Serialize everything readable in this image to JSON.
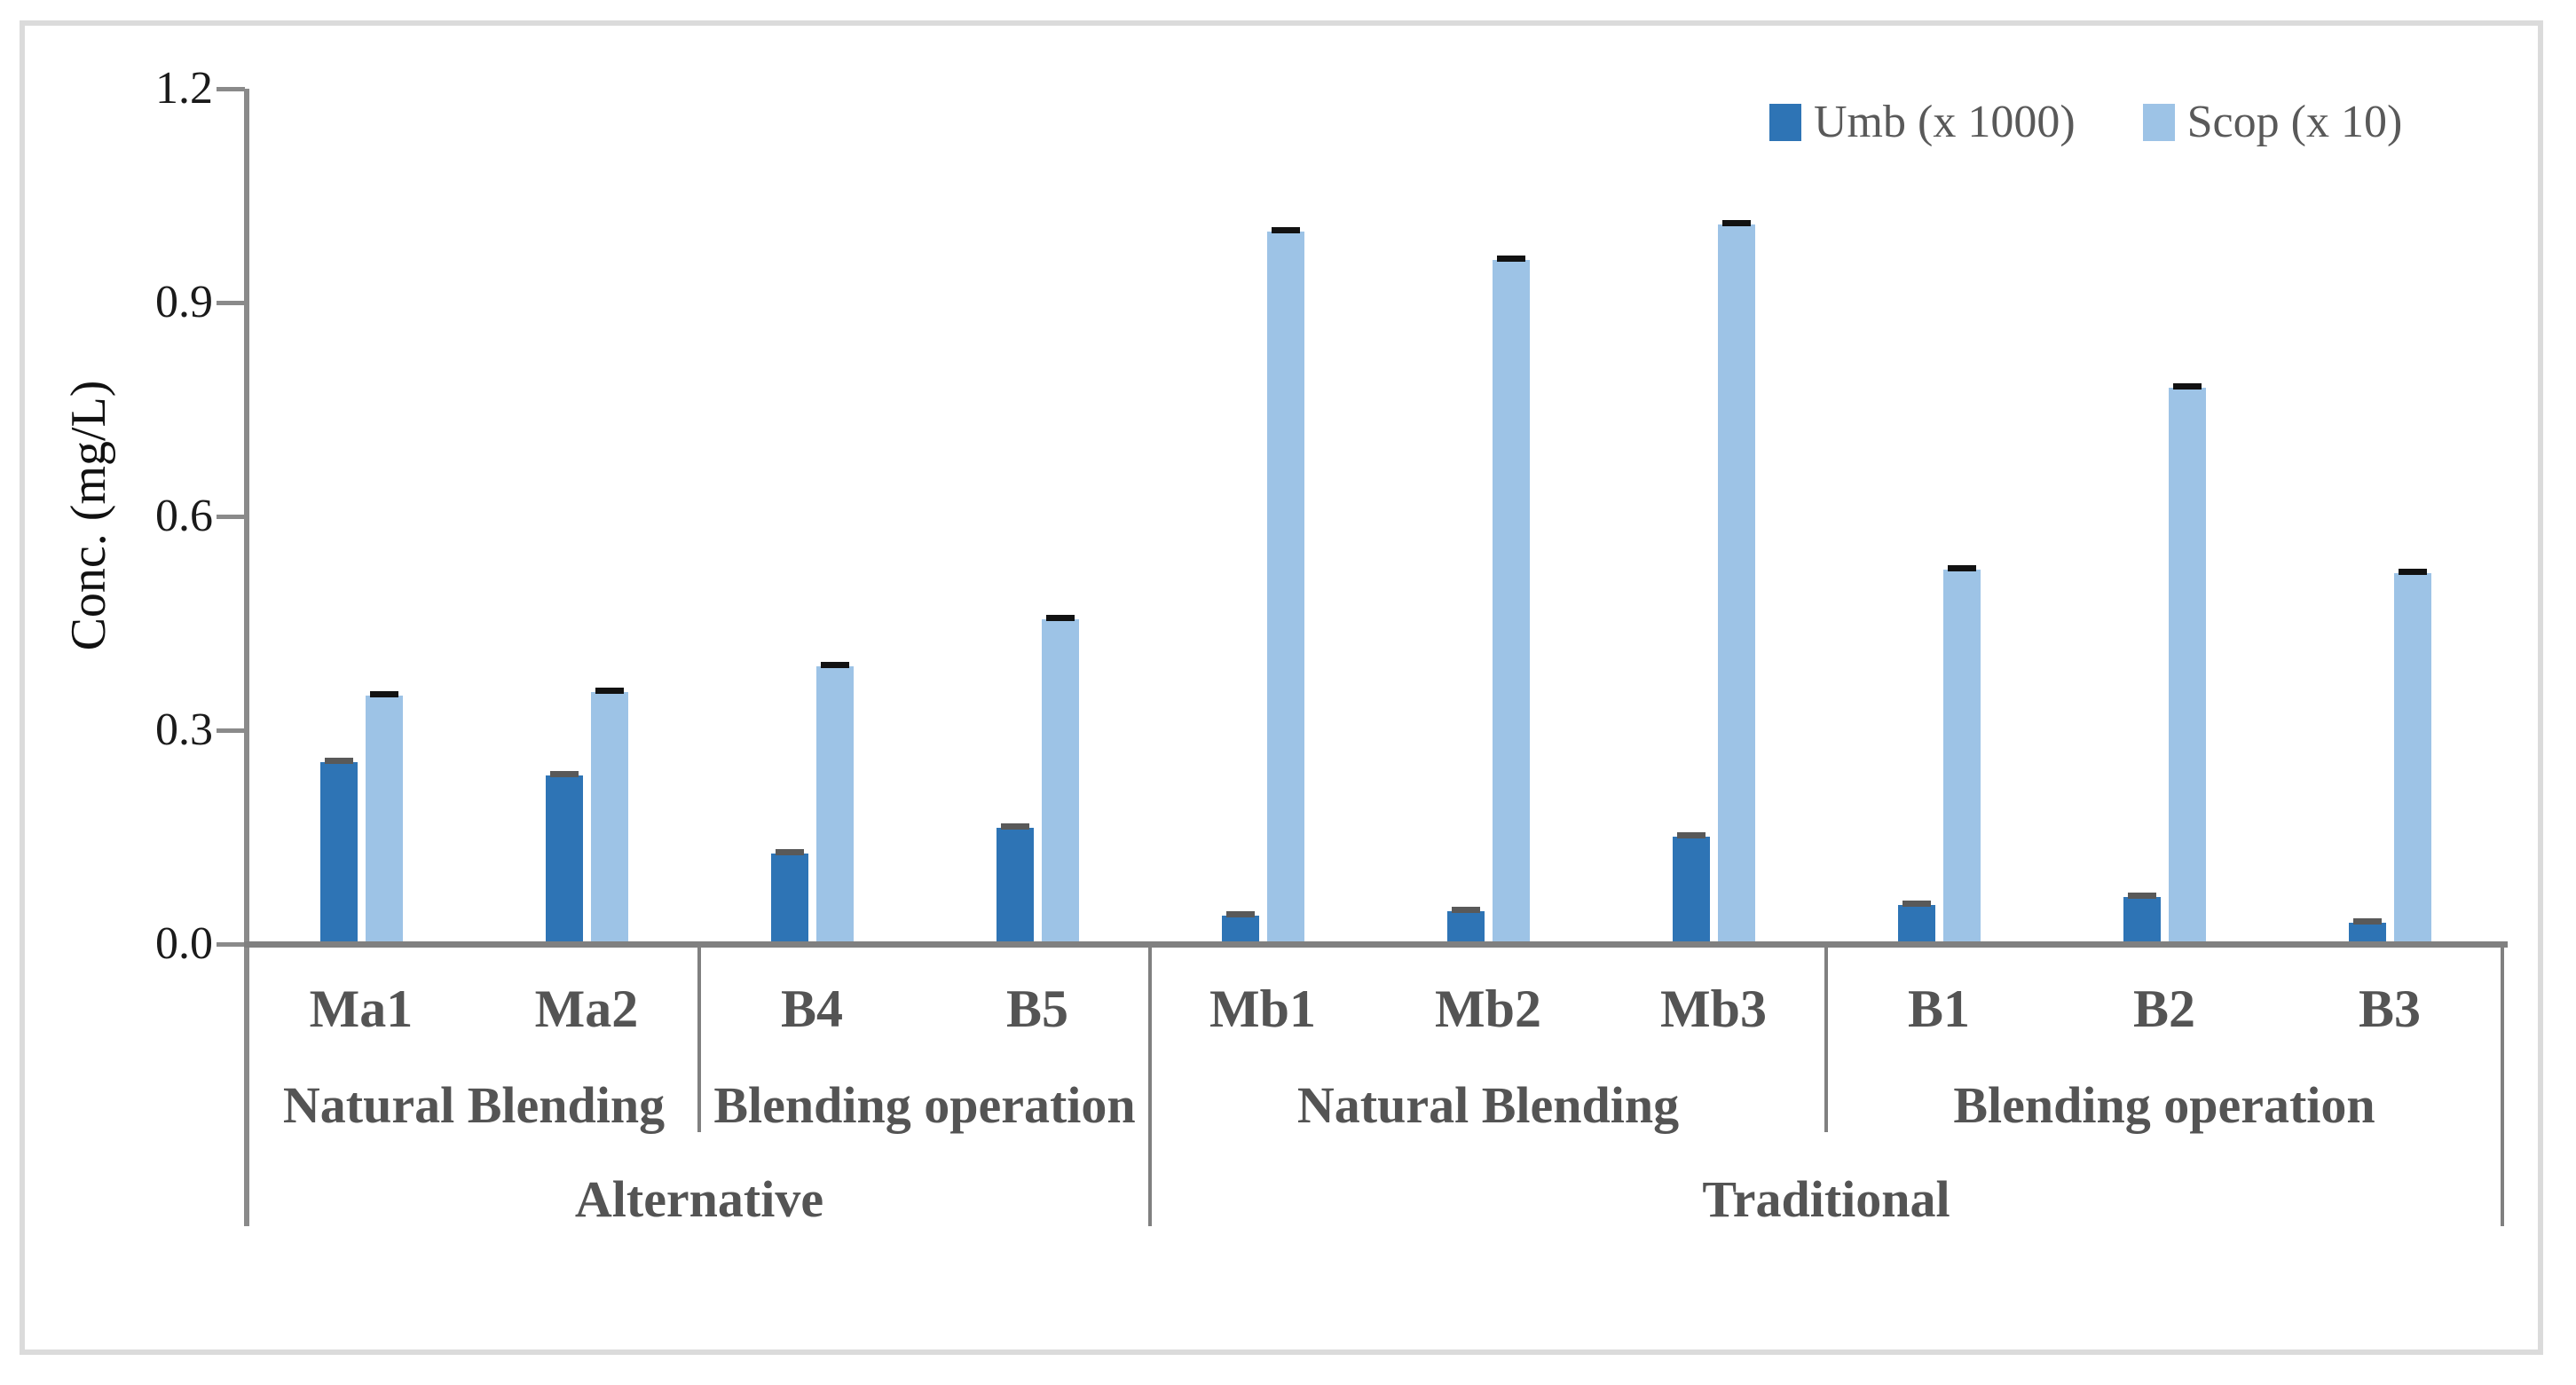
{
  "figure": {
    "background": "#FFFFFF",
    "frame_color": "#DBDBDB"
  },
  "chart_data": {
    "type": "bar",
    "title": "",
    "xlabel": "",
    "ylabel": "Conc. (mg/L)",
    "ylim": [
      0.0,
      1.2
    ],
    "yticks": [
      0.0,
      0.3,
      0.6,
      0.9,
      1.2
    ],
    "ytick_labels": [
      "0.0",
      "0.3",
      "0.6",
      "0.9",
      "1.2"
    ],
    "grid": false,
    "legend_position": "top-right",
    "error_caps": true,
    "categories": [
      "Ma1",
      "Ma2",
      "B4",
      "B5",
      "Mb1",
      "Mb2",
      "Mb3",
      "B1",
      "B2",
      "B3"
    ],
    "series": [
      {
        "name": "Umb (x 1000)",
        "color": "#2E74B5",
        "error_cap_color": "#595959",
        "values": [
          0.255,
          0.237,
          0.127,
          0.163,
          0.04,
          0.046,
          0.151,
          0.055,
          0.066,
          0.03
        ]
      },
      {
        "name": "Scop (x 10)",
        "color": "#9DC3E6",
        "error_cap_color": "#121212",
        "values": [
          0.348,
          0.353,
          0.39,
          0.455,
          1.0,
          0.96,
          1.01,
          0.525,
          0.78,
          0.52
        ]
      }
    ],
    "axis_groups": [
      {
        "label": "Natural Blending",
        "span": [
          0,
          2
        ]
      },
      {
        "label": "Blending operation",
        "span": [
          2,
          4
        ]
      },
      {
        "label": "Natural Blending",
        "span": [
          4,
          7
        ]
      },
      {
        "label": "Blending operation",
        "span": [
          7,
          10
        ]
      }
    ],
    "axis_supergroups": [
      {
        "label": "Alternative",
        "span": [
          0,
          4
        ]
      },
      {
        "label": "Traditional",
        "span": [
          4,
          10
        ]
      }
    ]
  }
}
